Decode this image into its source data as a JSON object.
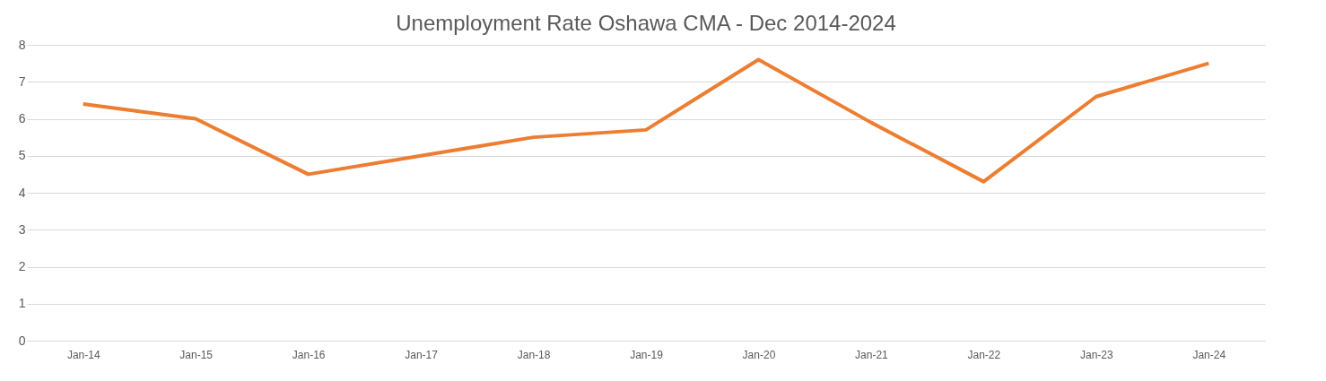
{
  "chart_data": {
    "type": "line",
    "title": "Unemployment Rate Oshawa CMA - Dec 2014-2024",
    "categories": [
      "Jan-14",
      "Jan-15",
      "Jan-16",
      "Jan-17",
      "Jan-18",
      "Jan-19",
      "Jan-20",
      "Jan-21",
      "Jan-22",
      "Jan-23",
      "Jan-24"
    ],
    "series": [
      {
        "color": "#ed7d31",
        "values": [
          6.4,
          6.0,
          4.5,
          5.0,
          5.5,
          5.7,
          7.6,
          5.9,
          4.3,
          6.6,
          7.5
        ]
      }
    ],
    "ylim": [
      0,
      8
    ],
    "yticks": [
      0,
      1,
      2,
      3,
      4,
      5,
      6,
      7,
      8
    ],
    "grid": "y",
    "marker": "none",
    "line_style": "solid"
  }
}
